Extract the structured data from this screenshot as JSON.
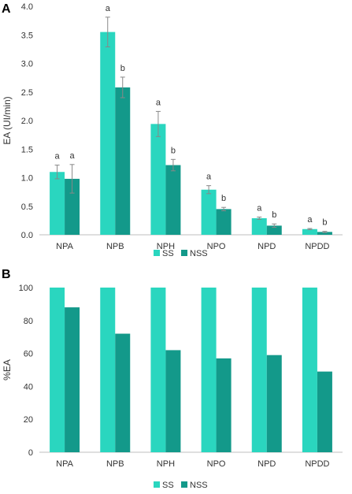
{
  "colors": {
    "ss": "#2ad6bf",
    "nss": "#13998a",
    "errbar": "#888888",
    "axis": "#bfbfbf"
  },
  "chart_data": [
    {
      "panel": "A",
      "type": "bar",
      "ylabel": "EA (UI/min)",
      "ylim": [
        0,
        4
      ],
      "yticks": [
        "0.0",
        "0.5",
        "1.0",
        "1.5",
        "2.0",
        "2.5",
        "3.0",
        "3.5",
        "4.0"
      ],
      "categories": [
        "NPA",
        "NPB",
        "NPH",
        "NPO",
        "NPD",
        "NPDD"
      ],
      "series": [
        {
          "name": "SS",
          "values": [
            1.1,
            3.55,
            1.94,
            0.79,
            0.29,
            0.1
          ],
          "errors": [
            0.12,
            0.26,
            0.22,
            0.07,
            0.02,
            0.01
          ],
          "letters": [
            "a",
            "a",
            "a",
            "a",
            "a",
            "a"
          ]
        },
        {
          "name": "NSS",
          "values": [
            0.98,
            2.58,
            1.22,
            0.45,
            0.16,
            0.05
          ],
          "errors": [
            0.25,
            0.18,
            0.1,
            0.03,
            0.03,
            0.01
          ],
          "letters": [
            "a",
            "b",
            "b",
            "b",
            "b",
            "b"
          ]
        }
      ],
      "legend": "bottom"
    },
    {
      "panel": "B",
      "type": "bar",
      "ylabel": "%EA",
      "ylim": [
        0,
        100
      ],
      "yticks": [
        "0",
        "20",
        "40",
        "60",
        "80",
        "100"
      ],
      "categories": [
        "NPA",
        "NPB",
        "NPH",
        "NPO",
        "NPD",
        "NPDD"
      ],
      "series": [
        {
          "name": "SS",
          "values": [
            100,
            100,
            100,
            100,
            100,
            100
          ]
        },
        {
          "name": "NSS",
          "values": [
            88,
            72,
            62,
            57,
            59,
            49
          ]
        }
      ],
      "legend": "bottom"
    }
  ]
}
